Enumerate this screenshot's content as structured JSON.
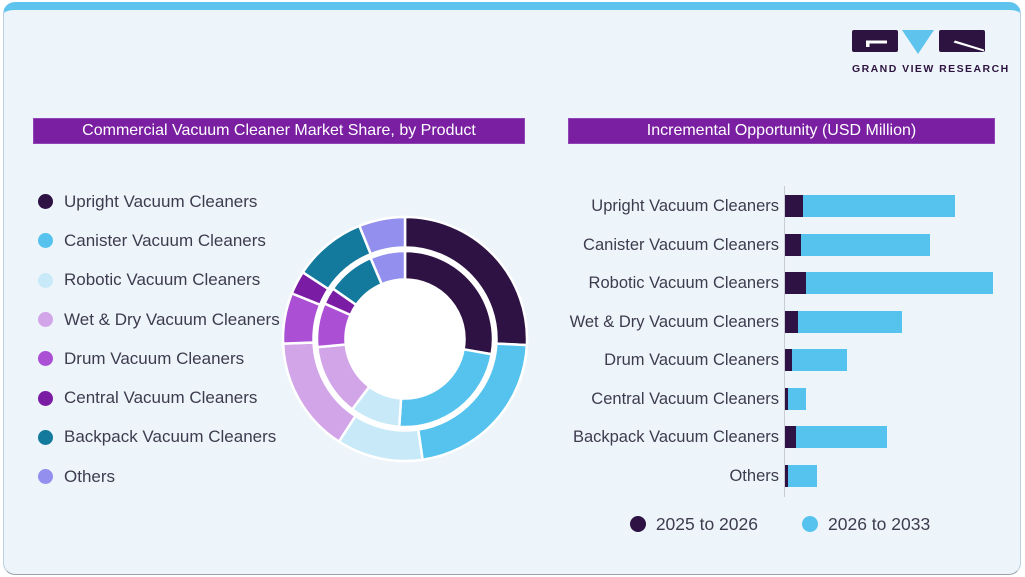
{
  "brand": {
    "logo_text": "GRAND VIEW RESEARCH"
  },
  "left_panel": {
    "title": "Commercial Vacuum Cleaner Market Share, by Product"
  },
  "right_panel": {
    "title": "Incremental Opportunity (USD Million)"
  },
  "chart_data": [
    {
      "type": "pie",
      "variant": "double-ring-donut",
      "title": "Commercial Vacuum Cleaner Market Share, by Product",
      "categories": [
        "Upright Vacuum Cleaners",
        "Canister Vacuum Cleaners",
        "Robotic Vacuum Cleaners",
        "Wet & Dry Vacuum Cleaners",
        "Drum Vacuum Cleaners",
        "Central Vacuum Cleaners",
        "Backpack Vacuum Cleaners",
        "Others"
      ],
      "colors": [
        "#2d1243",
        "#56c3ee",
        "#c8e9f7",
        "#d2a5e9",
        "#ab50d5",
        "#7a1da4",
        "#137a9d",
        "#938fee"
      ],
      "series": [
        {
          "name": "inner ring",
          "values_pct": [
            27.8,
            23.3,
            9.2,
            13.3,
            8.1,
            3.1,
            8.9,
            6.4
          ]
        },
        {
          "name": "outer ring",
          "values_pct": [
            25.8,
            21.9,
            11.4,
            15.3,
            6.7,
            3.1,
            9.7,
            6.1
          ]
        }
      ],
      "start_angle": "12 o'clock, clockwise",
      "legend_position": "left",
      "data_labels": false
    },
    {
      "type": "bar",
      "orientation": "horizontal",
      "stacked": true,
      "title": "Incremental Opportunity (USD Million)",
      "categories": [
        "Upright Vacuum Cleaners",
        "Canister Vacuum Cleaners",
        "Robotic Vacuum Cleaners",
        "Wet & Dry Vacuum Cleaners",
        "Drum Vacuum Cleaners",
        "Central Vacuum Cleaners",
        "Backpack Vacuum Cleaners",
        "Others"
      ],
      "series": [
        {
          "name": "2025 to 2026",
          "color": "#2d1243",
          "values": [
            18,
            16,
            21,
            13,
            7,
            3,
            11,
            3
          ]
        },
        {
          "name": "2026 to 2033",
          "color": "#56c3ee",
          "values": [
            152,
            129,
            187,
            104,
            55,
            18,
            91,
            29
          ]
        }
      ],
      "value_axis": "unlabeled; values are relative lengths",
      "grid": false,
      "legend_position": "bottom"
    }
  ],
  "theme": {
    "card_bg": "#eef5fa",
    "top_strip": "#5ec4ee",
    "title_bar_bg": "#7b1fa2",
    "title_bar_text": "#ffffff",
    "text_color": "#3d3c4f",
    "axis_line": "#c9ccd3",
    "donut_hole": "#ffffff",
    "logo_purple": "#2d1440",
    "logo_blue": "#5ec4ee"
  }
}
